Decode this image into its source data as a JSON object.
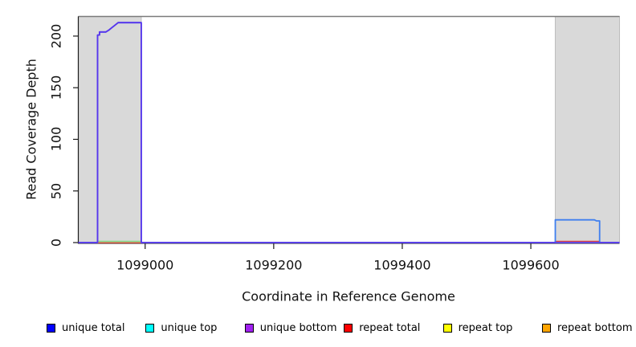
{
  "chart_data": {
    "type": "line",
    "title": "",
    "xlabel": "Coordinate in Reference Genome",
    "ylabel": "Read Coverage Depth",
    "xlim": [
      1098896,
      1099738
    ],
    "ylim": [
      0,
      219
    ],
    "x_ticks": [
      1099000,
      1099200,
      1099400,
      1099600
    ],
    "x_tick_labels": [
      "1099000",
      "1099200",
      "1099400",
      "1099600"
    ],
    "y_ticks": [
      0,
      50,
      100,
      150,
      200
    ],
    "y_tick_labels": [
      "0",
      "50",
      "100",
      "150",
      "200"
    ],
    "grid": false,
    "legend_position": "bottom",
    "background_color": "#ffffff",
    "shaded_region_fill": "#d9d9d9",
    "shaded_region_stroke": "#bdbdbd",
    "plot_top_border_color": "#7a7a7a",
    "axis_color": "#1a1a1a",
    "shaded_regions": [
      {
        "x0": 1098896,
        "x1": 1098994,
        "label": "masked-region-left"
      },
      {
        "x0": 1099638,
        "x1": 1099738,
        "label": "masked-region-right"
      }
    ],
    "draw_order": [
      5,
      4,
      3,
      1,
      0,
      2
    ],
    "series": [
      {
        "name": "unique total",
        "color": "#0000ff",
        "render_color": "#3f7fef",
        "points": [
          [
            1098896,
            0
          ],
          [
            1098926,
            0
          ],
          [
            1098926,
            201
          ],
          [
            1098929,
            201
          ],
          [
            1098929,
            204
          ],
          [
            1098939,
            204
          ],
          [
            1098944,
            206
          ],
          [
            1098948,
            208
          ],
          [
            1098952,
            210
          ],
          [
            1098958,
            213
          ],
          [
            1098994,
            213
          ],
          [
            1098994,
            0
          ],
          [
            1099638,
            0
          ],
          [
            1099638,
            22
          ],
          [
            1099699,
            22
          ],
          [
            1099702,
            21
          ],
          [
            1099707,
            21
          ],
          [
            1099707,
            0
          ],
          [
            1099738,
            0
          ]
        ]
      },
      {
        "name": "unique top",
        "color": "#00ffff",
        "render_color": "#8fd98f",
        "points": [
          [
            1098896,
            0
          ],
          [
            1098926,
            0
          ],
          [
            1098926,
            1
          ],
          [
            1098994,
            1
          ],
          [
            1098994,
            0
          ],
          [
            1099738,
            0
          ]
        ]
      },
      {
        "name": "unique bottom",
        "color": "#a020f0",
        "render_color": "#5a35ec",
        "points": [
          [
            1098896,
            0
          ],
          [
            1098926,
            0
          ],
          [
            1098926,
            201
          ],
          [
            1098929,
            201
          ],
          [
            1098929,
            204
          ],
          [
            1098939,
            204
          ],
          [
            1098944,
            206
          ],
          [
            1098948,
            208
          ],
          [
            1098952,
            210
          ],
          [
            1098958,
            213
          ],
          [
            1098994,
            213
          ],
          [
            1098994,
            0
          ],
          [
            1099738,
            0
          ]
        ]
      },
      {
        "name": "repeat total",
        "color": "#ff0000",
        "render_color": "#e04343",
        "points": [
          [
            1098896,
            0
          ],
          [
            1099638,
            0
          ],
          [
            1099638,
            1
          ],
          [
            1099707,
            1
          ],
          [
            1099707,
            0
          ],
          [
            1099738,
            0
          ]
        ]
      },
      {
        "name": "repeat top",
        "color": "#ffff00",
        "render_color": "#8fd98f",
        "points": [
          [
            1098896,
            0
          ],
          [
            1098926,
            0
          ],
          [
            1098926,
            1
          ],
          [
            1098994,
            1
          ],
          [
            1098994,
            0
          ],
          [
            1099738,
            0
          ]
        ]
      },
      {
        "name": "repeat bottom",
        "color": "#ffa500",
        "render_color": "#ffa500",
        "points": [
          [
            1098896,
            0
          ],
          [
            1099738,
            0
          ]
        ]
      }
    ]
  }
}
